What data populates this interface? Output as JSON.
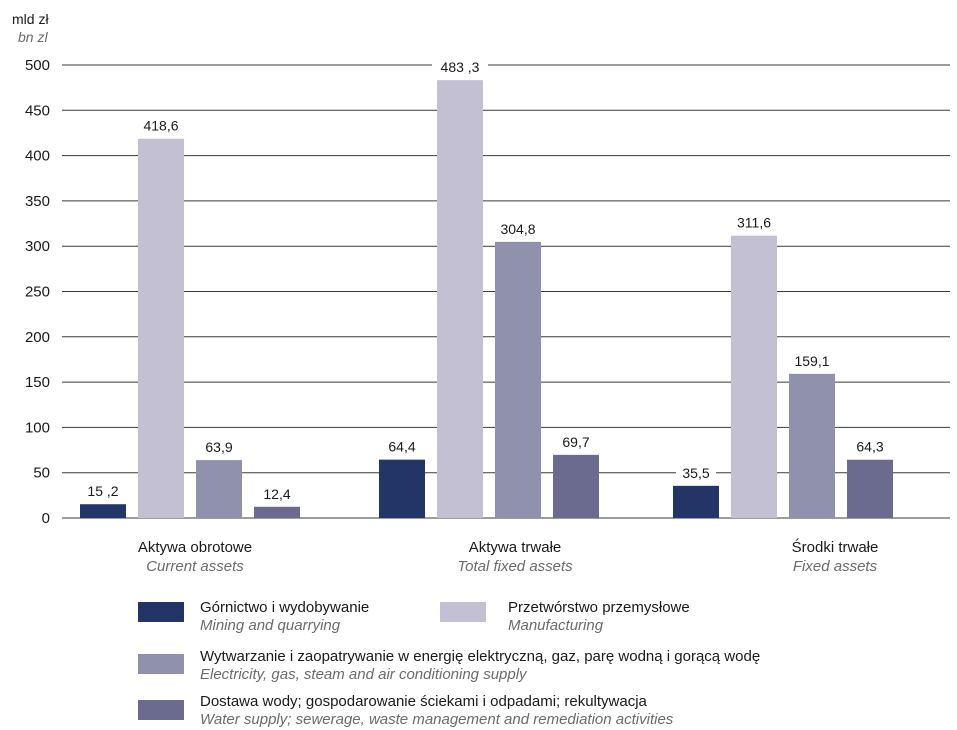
{
  "chart_data": {
    "type": "bar",
    "ylabel": "mld zł",
    "ylabel_en": "bn zl",
    "ylim": [
      0,
      500
    ],
    "yticks": [
      0,
      50,
      100,
      150,
      200,
      250,
      300,
      350,
      400,
      450,
      500
    ],
    "grid": true,
    "legend_position": "bottom",
    "categories": [
      {
        "label": "Aktywa obrotowe",
        "label_en": "Current assets"
      },
      {
        "label": "Aktywa trwałe",
        "label_en": "Total fixed assets"
      },
      {
        "label": "Środki trwałe",
        "label_en": "Fixed assets"
      }
    ],
    "series": [
      {
        "name": "Górnictwo i wydobywanie",
        "name_en": "Mining and quarrying",
        "color": "#233466",
        "values": [
          15.2,
          64.4,
          35.5
        ],
        "value_labels": [
          "15 ,2",
          "64,4",
          "35,5"
        ]
      },
      {
        "name": "Przetwórstwo przemysłowe",
        "name_en": "Manufacturing",
        "color": "#c3c0d4",
        "values": [
          418.6,
          483.3,
          311.6
        ],
        "value_labels": [
          "418,6",
          "483 ,3",
          "311,6"
        ]
      },
      {
        "name": "Wytwarzanie i zaopatrywanie w energię elektryczną, gaz, parę wodną i gorącą wodę",
        "name_en": "Electricity, gas, steam and air conditioning supply",
        "color": "#9091ad",
        "values": [
          63.9,
          304.8,
          159.1
        ],
        "value_labels": [
          "63,9",
          "304,8",
          "159,1"
        ]
      },
      {
        "name": "Dostawa wody; gospodarowanie ściekami i odpadami; rekultywacja",
        "name_en": "Water supply; sewerage, waste management and remediation activities",
        "color": "#6b6a8f",
        "values": [
          12.4,
          69.7,
          64.3
        ],
        "value_labels": [
          "12,4",
          "69,7",
          "64,3"
        ]
      }
    ]
  }
}
